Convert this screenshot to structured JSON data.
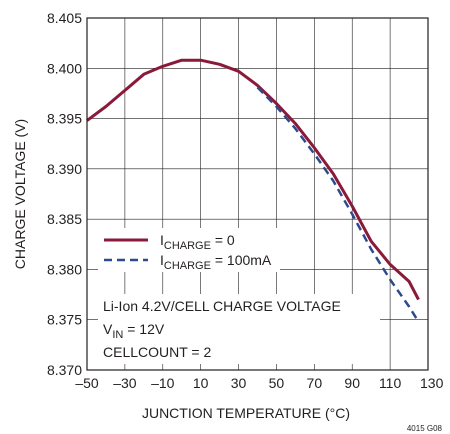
{
  "chart_data": {
    "type": "line",
    "xlabel": "JUNCTION TEMPERATURE (°C)",
    "ylabel": "CHARGE VOLTAGE (V)",
    "xlim": [
      -50,
      130
    ],
    "ylim": [
      8.37,
      8.405
    ],
    "x_ticks": [
      -50,
      -30,
      -10,
      10,
      30,
      50,
      70,
      90,
      110,
      130
    ],
    "x_tick_labels": [
      "–50",
      "–30",
      "–10",
      "10",
      "30",
      "50",
      "70",
      "90",
      "110",
      "130"
    ],
    "y_ticks": [
      8.37,
      8.375,
      8.38,
      8.385,
      8.39,
      8.395,
      8.4,
      8.405
    ],
    "y_tick_labels": [
      "8.370",
      "8.375",
      "8.380",
      "8.385",
      "8.390",
      "8.395",
      "8.400",
      "8.405"
    ],
    "grid": true,
    "legend_position": "lower-left",
    "series": [
      {
        "legend_main": "I",
        "legend_sub": "CHARGE",
        "legend_rest": " = 0",
        "color": "#8b1a3a",
        "style": "solid",
        "x": [
          -50,
          -40,
          -30,
          -20,
          -10,
          0,
          10,
          20,
          30,
          40,
          50,
          60,
          70,
          80,
          90,
          100,
          110,
          120,
          125
        ],
        "y": [
          8.3948,
          8.3962,
          8.3978,
          8.3994,
          8.4002,
          8.4008,
          8.4008,
          8.4004,
          8.3997,
          8.3983,
          8.3965,
          8.3945,
          8.3921,
          8.3895,
          8.3863,
          8.3828,
          8.3805,
          8.3788,
          8.377
        ]
      },
      {
        "legend_main": "I",
        "legend_sub": "CHARGE",
        "legend_rest": " = 100mA",
        "color": "#2e4a8e",
        "style": "dashed",
        "x": [
          40,
          50,
          60,
          70,
          80,
          90,
          100,
          110,
          120,
          125
        ],
        "y": [
          8.3981,
          8.3962,
          8.394,
          8.3915,
          8.3888,
          8.3855,
          8.382,
          8.379,
          8.3763,
          8.3748
        ]
      }
    ],
    "annotations": {
      "line1": "Li-Ion 4.2V/CELL CHARGE VOLTAGE",
      "line2_main": "V",
      "line2_sub": "IN",
      "line2_rest": " = 12V",
      "line3": "CELLCOUNT = 2"
    },
    "figure_id": "4015 G08"
  }
}
